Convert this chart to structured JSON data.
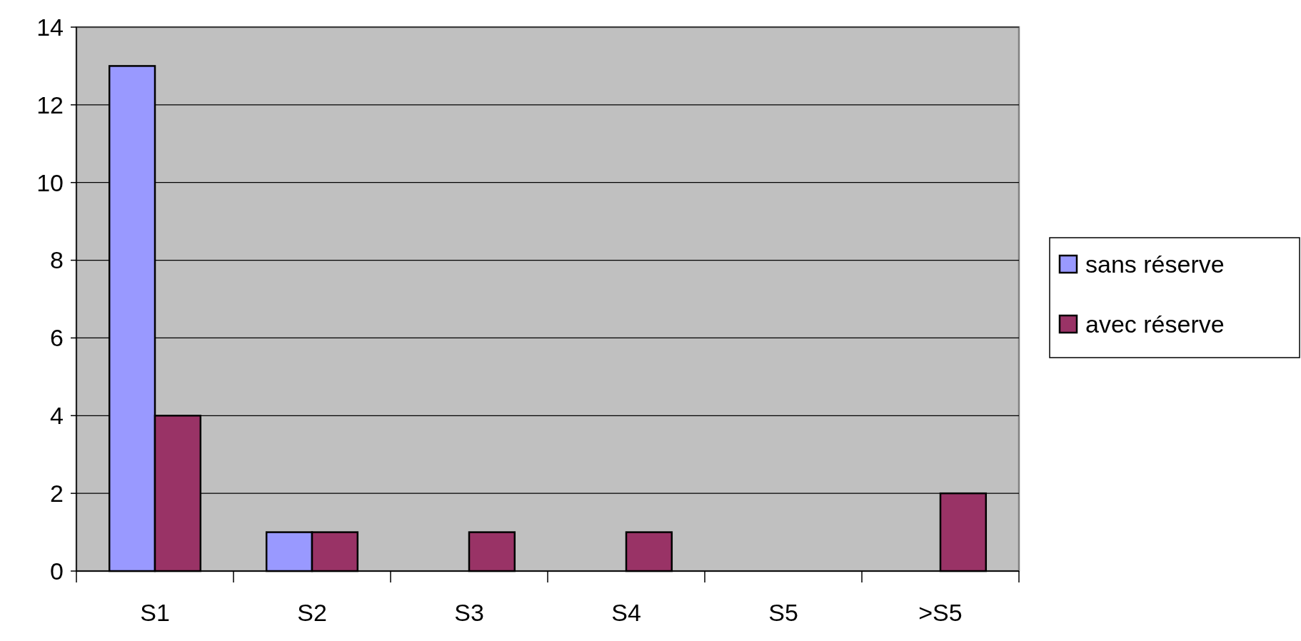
{
  "chart_data": {
    "type": "bar",
    "categories": [
      "S1",
      "S2",
      "S3",
      "S4",
      "S5",
      ">S5"
    ],
    "series": [
      {
        "name": "sans réserve",
        "color": "#9999ff",
        "values": [
          13,
          1,
          0,
          0,
          0,
          0
        ]
      },
      {
        "name": "avec réserve",
        "color": "#993366",
        "values": [
          4,
          1,
          1,
          1,
          0,
          2
        ]
      }
    ],
    "ylim": [
      0,
      14
    ],
    "yticks": [
      0,
      2,
      4,
      6,
      8,
      10,
      12,
      14
    ],
    "grid": "y",
    "legend": "right"
  }
}
